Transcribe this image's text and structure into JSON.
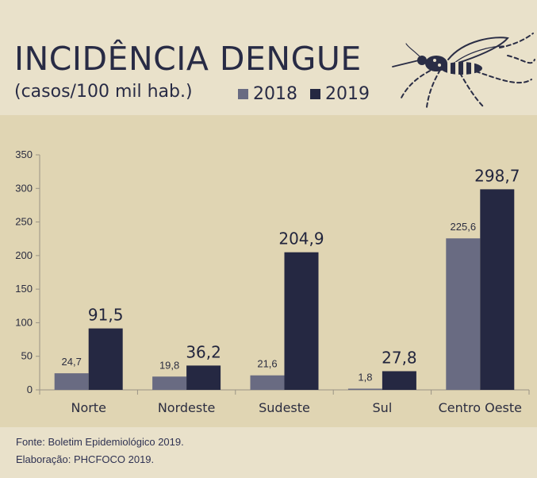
{
  "header": {
    "title": "INCIDÊNCIA DENGUE",
    "subtitle": "(casos/100 mil hab.)",
    "mosquito_icon": "mosquito-icon"
  },
  "footer": {
    "source": "Fonte: Boletim Epidemiológico 2019.",
    "credit": "Elaboração: PHCFOCO 2019."
  },
  "chart_data": {
    "type": "bar",
    "categories": [
      "Norte",
      "Nordeste",
      "Sudeste",
      "Sul",
      "Centro Oeste"
    ],
    "series": [
      {
        "name": "2018",
        "color": "#696b82",
        "values": [
          24.7,
          19.8,
          21.6,
          1.8,
          225.6
        ],
        "labels": [
          "24,7",
          "19,8",
          "21,6",
          "1,8",
          "225,6"
        ]
      },
      {
        "name": "2019",
        "color": "#252842",
        "values": [
          91.5,
          36.2,
          204.9,
          27.8,
          298.7
        ],
        "labels": [
          "91,5",
          "36,2",
          "204,9",
          "27,8",
          "298,7"
        ]
      }
    ],
    "ylim": [
      0,
      350
    ],
    "yticks": [
      0,
      50,
      100,
      150,
      200,
      250,
      300,
      350
    ],
    "grid": false,
    "legend_position": "top"
  }
}
